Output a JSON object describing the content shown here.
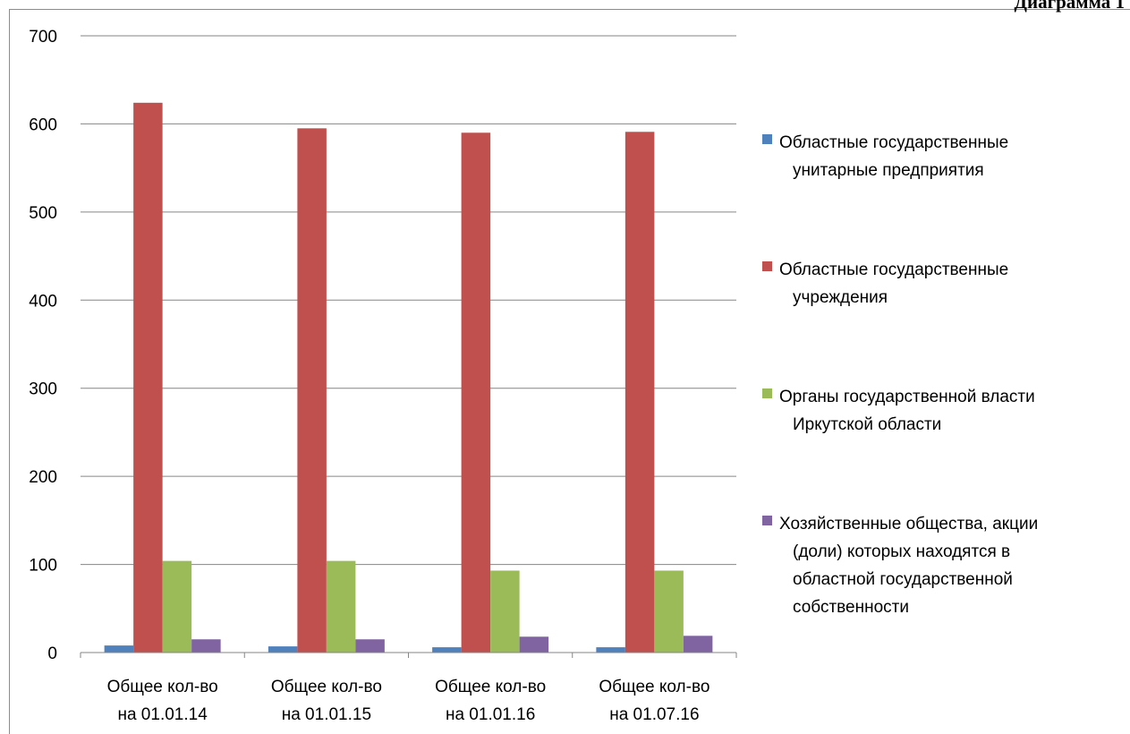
{
  "caption": "Диаграмма 1",
  "chart_data": {
    "type": "bar",
    "ylim": [
      0,
      700
    ],
    "yticks": [
      "0",
      "100",
      "200",
      "300",
      "400",
      "500",
      "600",
      "700"
    ],
    "grid": true,
    "legend_position": "right",
    "categories": [
      [
        "Общее кол-во",
        "на 01.01.14"
      ],
      [
        "Общее кол-во",
        "на 01.01.15"
      ],
      [
        "Общее кол-во",
        "на 01.01.16"
      ],
      [
        "Общее кол-во",
        "на 01.07.16"
      ]
    ],
    "series": [
      {
        "name": [
          "Областные государственные",
          "унитарные предприятия"
        ],
        "color": "#4f81bd",
        "values": [
          8,
          7,
          6,
          6
        ]
      },
      {
        "name": [
          "Областные государственные",
          "учреждения"
        ],
        "color": "#c0504d",
        "values": [
          624,
          595,
          590,
          591
        ]
      },
      {
        "name": [
          "Органы государственной власти",
          "Иркутской области"
        ],
        "color": "#9bbb59",
        "values": [
          104,
          104,
          93,
          93
        ]
      },
      {
        "name": [
          "Хозяйственные общества, акции",
          "(доли) которых находятся в",
          "областной государственной",
          "собственности"
        ],
        "color": "#8064a2",
        "values": [
          15,
          15,
          18,
          19
        ]
      }
    ]
  }
}
